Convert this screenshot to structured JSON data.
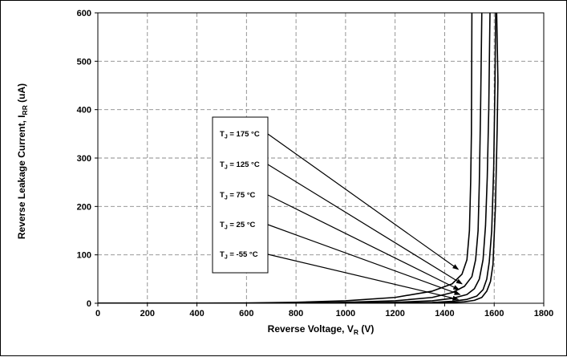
{
  "chart_data": {
    "type": "line",
    "xlabel": {
      "main": "Reverse Voltage, V",
      "sub": "R",
      "unit": " (V)"
    },
    "ylabel": {
      "main": "Reverse Leakage Current, I",
      "sub": "RR",
      "unit": " (uA)"
    },
    "xlim": [
      0,
      1800
    ],
    "ylim": [
      0,
      600
    ],
    "x_ticks": [
      "0",
      "200",
      "400",
      "600",
      "800",
      "1000",
      "1200",
      "1400",
      "1600",
      "1800"
    ],
    "y_ticks": [
      "0",
      "100",
      "200",
      "300",
      "400",
      "500",
      "600"
    ],
    "grid": true,
    "legend_box": "inside-center-left",
    "series": [
      {
        "name": "175 °C",
        "label": {
          "pre": "T",
          "sub": "J",
          "post": " = 175 °C"
        },
        "points": [
          [
            0,
            0
          ],
          [
            600,
            0.5
          ],
          [
            800,
            2
          ],
          [
            1000,
            5
          ],
          [
            1200,
            12
          ],
          [
            1350,
            25
          ],
          [
            1430,
            40
          ],
          [
            1470,
            60
          ],
          [
            1490,
            90
          ],
          [
            1500,
            150
          ],
          [
            1505,
            250
          ],
          [
            1508,
            350
          ],
          [
            1510,
            600
          ]
        ]
      },
      {
        "name": "125 °C",
        "label": {
          "pre": "T",
          "sub": "J",
          "post": " = 125 °C"
        },
        "points": [
          [
            0,
            0
          ],
          [
            800,
            0.5
          ],
          [
            1000,
            2
          ],
          [
            1200,
            5
          ],
          [
            1350,
            12
          ],
          [
            1430,
            22
          ],
          [
            1480,
            35
          ],
          [
            1510,
            55
          ],
          [
            1525,
            90
          ],
          [
            1535,
            150
          ],
          [
            1540,
            250
          ],
          [
            1545,
            400
          ],
          [
            1550,
            600
          ]
        ]
      },
      {
        "name": "75 °C",
        "label": {
          "pre": "T",
          "sub": "J",
          "post": " = 75 °C"
        },
        "points": [
          [
            0,
            0
          ],
          [
            1000,
            0.5
          ],
          [
            1200,
            2
          ],
          [
            1350,
            5
          ],
          [
            1430,
            10
          ],
          [
            1490,
            18
          ],
          [
            1520,
            30
          ],
          [
            1540,
            50
          ],
          [
            1555,
            90
          ],
          [
            1565,
            160
          ],
          [
            1572,
            260
          ],
          [
            1578,
            400
          ],
          [
            1583,
            600
          ]
        ]
      },
      {
        "name": "25 °C",
        "label": {
          "pre": "T",
          "sub": "J",
          "post": " = 25 °C"
        },
        "points": [
          [
            0,
            0
          ],
          [
            1200,
            0.5
          ],
          [
            1350,
            1.5
          ],
          [
            1430,
            4
          ],
          [
            1490,
            8
          ],
          [
            1530,
            15
          ],
          [
            1555,
            28
          ],
          [
            1570,
            50
          ],
          [
            1580,
            85
          ],
          [
            1590,
            150
          ],
          [
            1598,
            280
          ],
          [
            1603,
            450
          ],
          [
            1606,
            600
          ]
        ]
      },
      {
        "name": "-55 °C",
        "label": {
          "pre": "T",
          "sub": "J",
          "post": " = -55 °C"
        },
        "points": [
          [
            0,
            0
          ],
          [
            1300,
            0.5
          ],
          [
            1420,
            1.5
          ],
          [
            1480,
            3
          ],
          [
            1520,
            6
          ],
          [
            1550,
            12
          ],
          [
            1570,
            25
          ],
          [
            1585,
            45
          ],
          [
            1595,
            80
          ],
          [
            1605,
            200
          ],
          [
            1612,
            360
          ],
          [
            1615,
            460
          ],
          [
            1610,
            600
          ]
        ]
      }
    ]
  }
}
